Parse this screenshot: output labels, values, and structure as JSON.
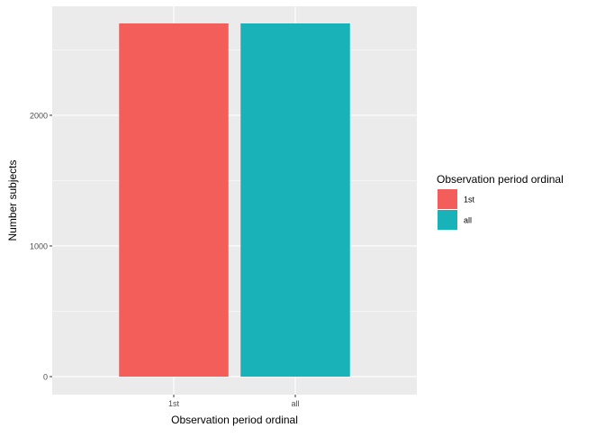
{
  "chart_data": {
    "type": "bar",
    "title": "",
    "xlabel": "Observation period ordinal",
    "ylabel": "Number subjects",
    "categories": [
      "1st",
      "all"
    ],
    "values": [
      2703,
      2703
    ],
    "colors": [
      "#F8766D",
      "#00BFC4"
    ],
    "bar_colors_rendered": [
      "#F35E5A",
      "#19B2B8"
    ],
    "ylim": [
      -138,
      2834
    ],
    "yticks": [
      0,
      1000,
      2000
    ],
    "ytick_labels": [
      "0",
      "1000",
      "2000"
    ],
    "grid": true,
    "legend": {
      "title": "Observation period ordinal",
      "entries": [
        "1st",
        "all"
      ],
      "placement": "right"
    }
  }
}
